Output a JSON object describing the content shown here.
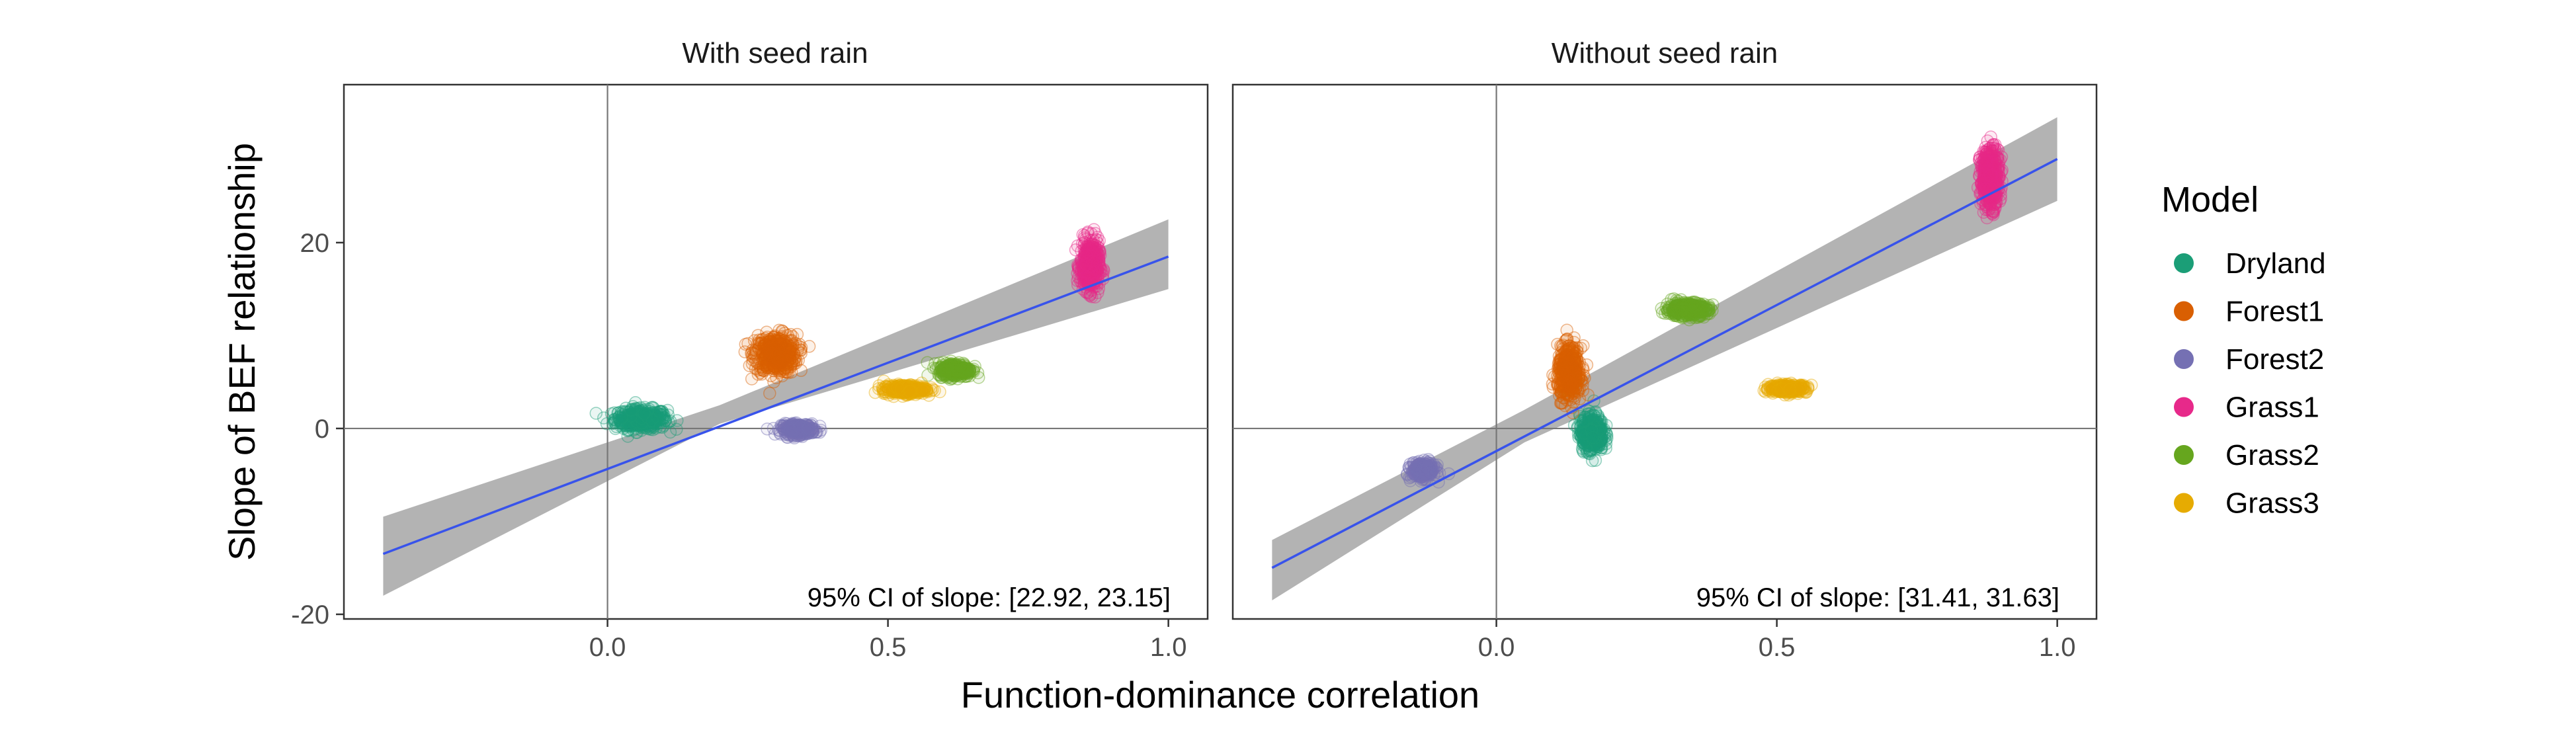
{
  "figure": {
    "ylabel": "Slope of BEF relationship",
    "xlabel": "Function-dominance correlation",
    "legend_title": "Model"
  },
  "chart_data": {
    "type": "scatter",
    "facets": [
      "With seed rain",
      "Without seed rain"
    ],
    "x_ticks": [
      "0.0",
      "0.5",
      "1.0"
    ],
    "x_tick_values": [
      0,
      0.5,
      1
    ],
    "y_ticks": [
      "20",
      "0",
      "-20"
    ],
    "y_tick_values": [
      20,
      0,
      -20
    ],
    "xlim": [
      -0.47,
      1.07
    ],
    "ylim": [
      -20.5,
      37
    ],
    "grid": false,
    "legend_position": "right",
    "reference_lines": {
      "x": 0,
      "y": 0
    },
    "point_colors": {
      "Dryland": "#1B9E77",
      "Forest1": "#D95F02",
      "Forest2": "#7570B3",
      "Grass1": "#E7298A",
      "Grass2": "#66A61E",
      "Grass3": "#E6AB02"
    },
    "legend_labels": [
      "Dryland",
      "Forest1",
      "Forest2",
      "Grass1",
      "Grass2",
      "Grass3"
    ],
    "fit_color": "#3853EB",
    "band_color": "#B3B3B3",
    "panels": [
      {
        "title": "With seed rain",
        "annotation": "95% CI of slope: [22.92, 23.15]",
        "fit": {
          "x": [
            -0.4,
            1.0
          ],
          "y": [
            -13.5,
            18.5
          ]
        },
        "band_upper": {
          "x": [
            -0.4,
            0.2,
            1.0
          ],
          "y": [
            -9.5,
            2.5,
            22.5
          ]
        },
        "band_lower": {
          "x": [
            -0.4,
            0.2,
            1.0
          ],
          "y": [
            -18,
            0.5,
            15
          ]
        },
        "clusters": [
          {
            "model": "Dryland",
            "x_center": 0.06,
            "x_spread": 0.055,
            "y_center": 1.0,
            "y_spread": 1.3,
            "n": 420
          },
          {
            "model": "Forest1",
            "x_center": 0.3,
            "x_spread": 0.045,
            "y_center": 8.0,
            "y_spread": 2.5,
            "n": 450
          },
          {
            "model": "Forest2",
            "x_center": 0.34,
            "x_spread": 0.035,
            "y_center": -0.1,
            "y_spread": 0.7,
            "n": 300
          },
          {
            "model": "Grass1",
            "x_center": 0.86,
            "x_spread": 0.02,
            "y_center": 17.5,
            "y_spread": 3.2,
            "n": 450
          },
          {
            "model": "Grass2",
            "x_center": 0.62,
            "x_spread": 0.035,
            "y_center": 6.3,
            "y_spread": 0.9,
            "n": 300
          },
          {
            "model": "Grass3",
            "x_center": 0.53,
            "x_spread": 0.045,
            "y_center": 4.2,
            "y_spread": 0.6,
            "n": 300
          }
        ]
      },
      {
        "title": "Without seed rain",
        "annotation": "95% CI of slope: [31.41, 31.63]",
        "fit": {
          "x": [
            -0.4,
            1.0
          ],
          "y": [
            -15,
            29
          ]
        },
        "band_upper": {
          "x": [
            -0.4,
            0.05,
            1.0
          ],
          "y": [
            -12,
            2,
            33.5
          ]
        },
        "band_lower": {
          "x": [
            -0.4,
            0.05,
            1.0
          ],
          "y": [
            -18.5,
            -1.5,
            24.5
          ]
        },
        "clusters": [
          {
            "model": "Dryland",
            "x_center": 0.17,
            "x_spread": 0.025,
            "y_center": -0.5,
            "y_spread": 2.3,
            "n": 420
          },
          {
            "model": "Forest1",
            "x_center": 0.13,
            "x_spread": 0.025,
            "y_center": 6.0,
            "y_spread": 3.3,
            "n": 450
          },
          {
            "model": "Forest2",
            "x_center": -0.13,
            "x_spread": 0.025,
            "y_center": -4.5,
            "y_spread": 1.0,
            "n": 300
          },
          {
            "model": "Grass1",
            "x_center": 0.88,
            "x_spread": 0.02,
            "y_center": 27.0,
            "y_spread": 3.8,
            "n": 450
          },
          {
            "model": "Grass2",
            "x_center": 0.34,
            "x_spread": 0.045,
            "y_center": 12.8,
            "y_spread": 0.9,
            "n": 350
          },
          {
            "model": "Grass3",
            "x_center": 0.52,
            "x_spread": 0.04,
            "y_center": 4.3,
            "y_spread": 0.5,
            "n": 300
          }
        ]
      }
    ]
  }
}
